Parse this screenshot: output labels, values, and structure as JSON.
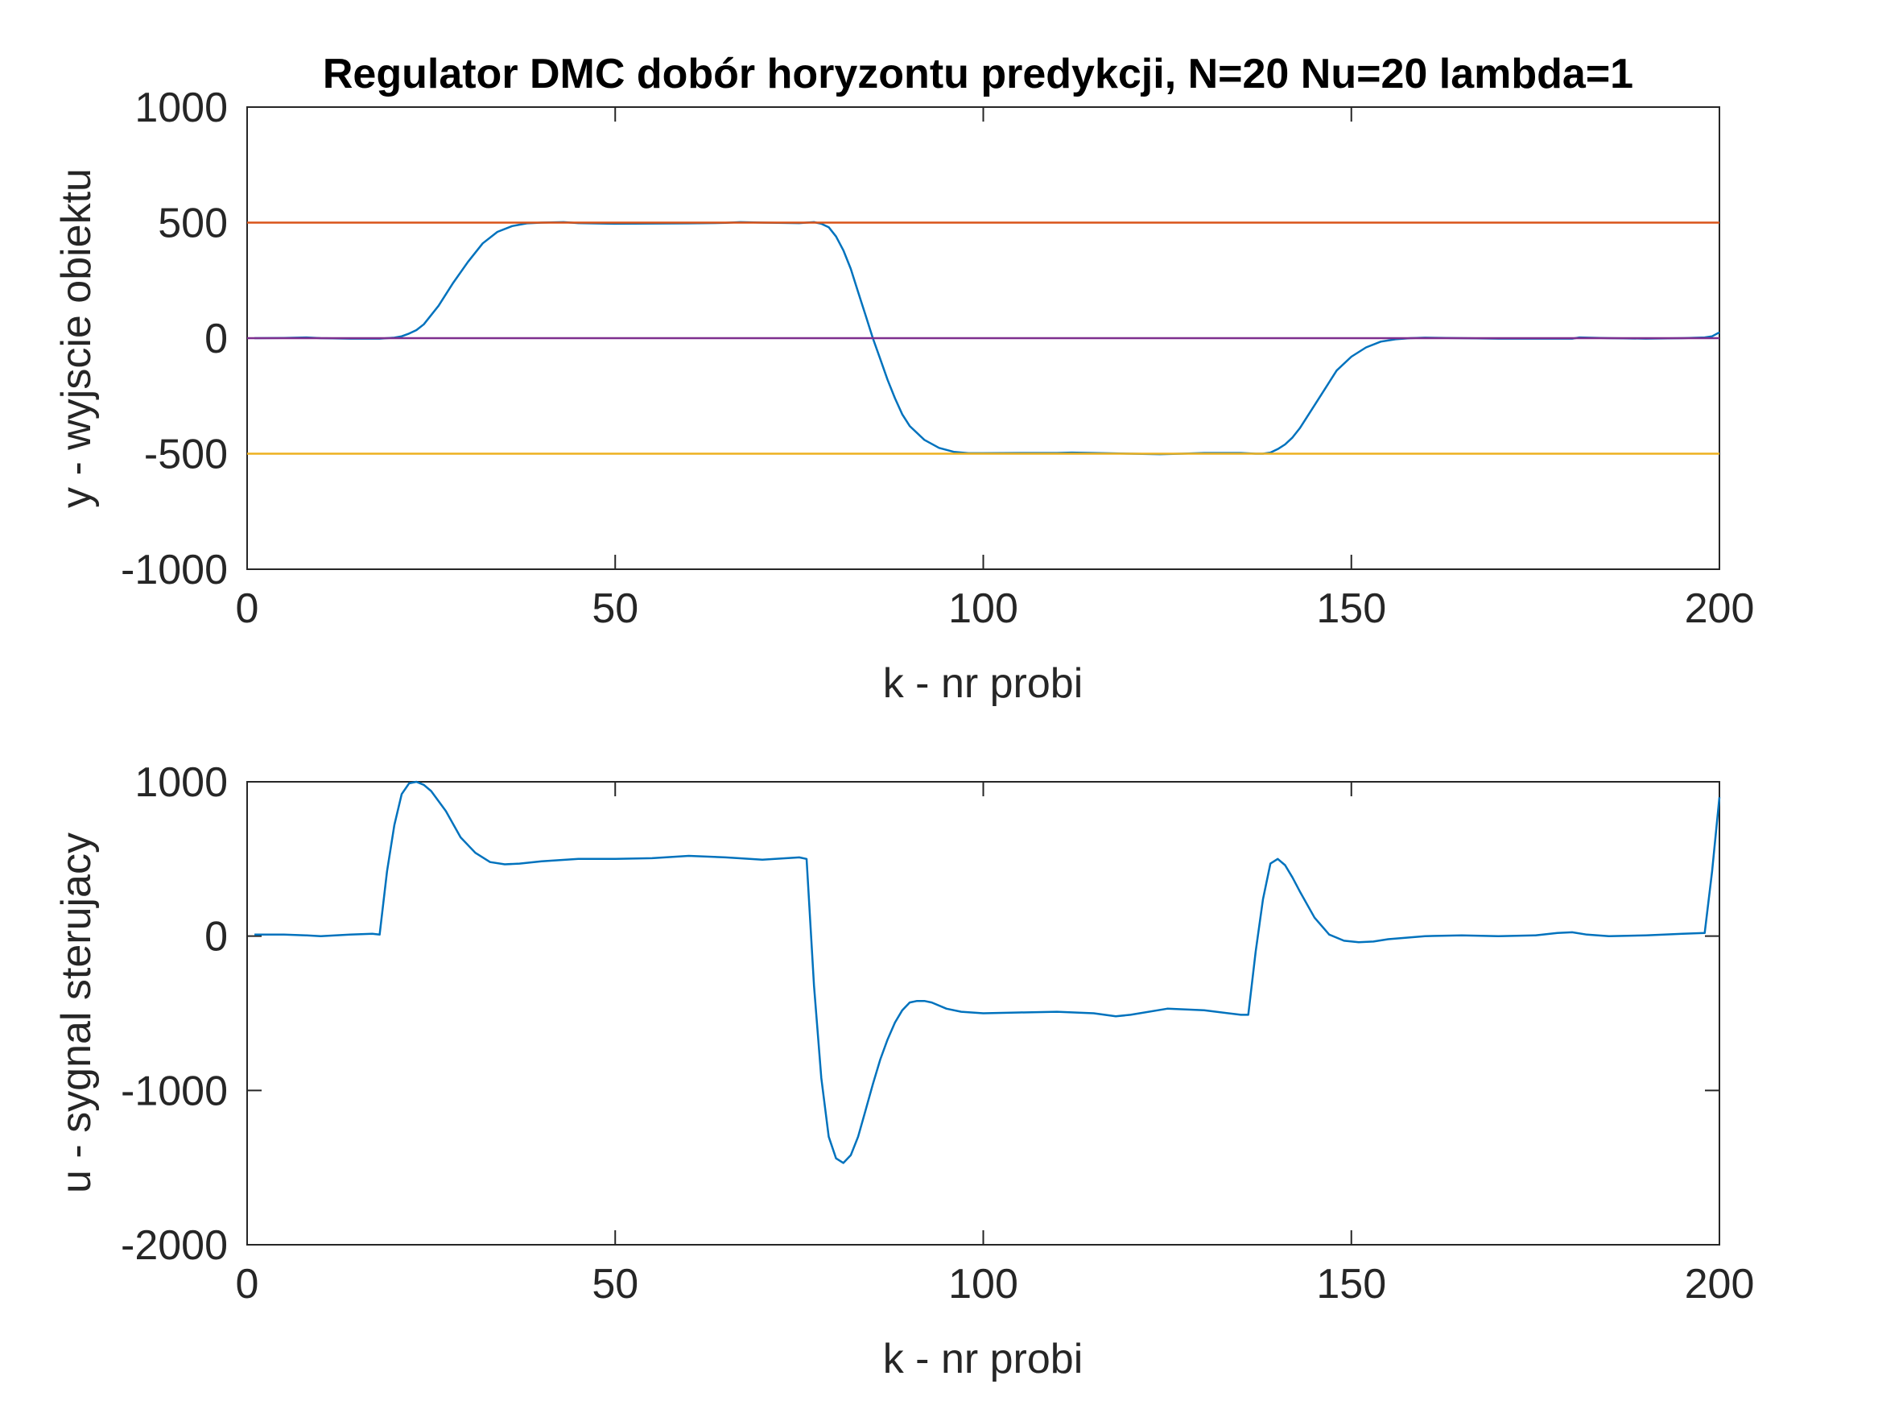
{
  "figure": {
    "title": "Regulator DMC dobór horyzontu predykcji, N=20 Nu=20 lambda=1"
  },
  "colors": {
    "output": "#0072BD",
    "setpoint_high": "#D95319",
    "setpoint_low": "#EDB120",
    "zero_line": "#7E2F8E",
    "axes": "#262626"
  },
  "chart_data": [
    {
      "type": "line",
      "xlabel": "k - nr probi",
      "ylabel": "y - wyjscie obiektu",
      "xlim": [
        0,
        200
      ],
      "ylim": [
        -1000,
        1000
      ],
      "xticks": [
        "0",
        "50",
        "100",
        "150",
        "200"
      ],
      "yticks": [
        "-1000",
        "-500",
        "0",
        "500",
        "1000"
      ],
      "grid": false,
      "series": [
        {
          "role": "output",
          "color": "#0072BD",
          "x": [
            1,
            5,
            8,
            10,
            14,
            18,
            19,
            20,
            21,
            22,
            23,
            24,
            26,
            28,
            30,
            32,
            34,
            36,
            38,
            40,
            43,
            45,
            50,
            55,
            60,
            65,
            67,
            70,
            75,
            77,
            78,
            79,
            80,
            81,
            82,
            83,
            84,
            85,
            86,
            87,
            88,
            89,
            90,
            92,
            94,
            96,
            98,
            100,
            105,
            110,
            112,
            115,
            120,
            124,
            127,
            130,
            135,
            137,
            138,
            139,
            140,
            141,
            142,
            143,
            144,
            146,
            148,
            150,
            152,
            154,
            156,
            158,
            160,
            165,
            170,
            175,
            180,
            181,
            185,
            190,
            195,
            198,
            199,
            200
          ],
          "y": [
            0,
            1,
            3,
            0,
            -2,
            -2,
            0,
            2,
            8,
            20,
            35,
            60,
            140,
            240,
            330,
            410,
            460,
            485,
            497,
            500,
            502,
            498,
            495,
            496,
            497,
            499,
            502,
            500,
            498,
            502,
            495,
            480,
            440,
            380,
            300,
            200,
            100,
            0,
            -90,
            -180,
            -260,
            -330,
            -380,
            -440,
            -475,
            -492,
            -498,
            -498,
            -497,
            -497,
            -495,
            -497,
            -500,
            -502,
            -500,
            -497,
            -497,
            -500,
            -500,
            -495,
            -480,
            -460,
            -430,
            -390,
            -340,
            -240,
            -140,
            -80,
            -40,
            -15,
            -5,
            0,
            2,
            0,
            -2,
            -2,
            -2,
            3,
            0,
            -2,
            0,
            3,
            8,
            25
          ]
        },
        {
          "role": "setpoint_high",
          "color": "#D95319",
          "x": [
            0,
            200
          ],
          "y": [
            500,
            500
          ]
        },
        {
          "role": "setpoint_low",
          "color": "#EDB120",
          "x": [
            0,
            200
          ],
          "y": [
            -500,
            -500
          ]
        },
        {
          "role": "zero_line",
          "color": "#7E2F8E",
          "x": [
            0,
            200
          ],
          "y": [
            0,
            0
          ]
        }
      ]
    },
    {
      "type": "line",
      "xlabel": "k - nr probi",
      "ylabel": "u - sygnal sterujacy",
      "xlim": [
        0,
        200
      ],
      "ylim": [
        -2000,
        1000
      ],
      "xticks": [
        "0",
        "50",
        "100",
        "150",
        "200"
      ],
      "yticks": [
        "-2000",
        "-1000",
        "0",
        "1000"
      ],
      "grid": false,
      "series": [
        {
          "role": "control",
          "color": "#0072BD",
          "x": [
            1,
            5,
            8,
            10,
            14,
            17,
            18,
            19,
            20,
            21,
            22,
            23,
            24,
            25,
            27,
            29,
            31,
            33,
            35,
            37,
            40,
            45,
            50,
            55,
            60,
            65,
            70,
            75,
            76,
            77,
            78,
            79,
            80,
            81,
            82,
            83,
            84,
            85,
            86,
            87,
            88,
            89,
            90,
            91,
            92,
            93,
            95,
            97,
            100,
            105,
            110,
            115,
            118,
            120,
            125,
            130,
            135,
            136,
            137,
            138,
            139,
            140,
            141,
            142,
            143,
            145,
            147,
            149,
            151,
            153,
            155,
            160,
            165,
            170,
            175,
            178,
            180,
            182,
            185,
            190,
            195,
            198,
            199,
            200
          ],
          "y": [
            10,
            10,
            5,
            0,
            10,
            15,
            10,
            420,
            720,
            920,
            990,
            1000,
            980,
            940,
            810,
            640,
            540,
            480,
            465,
            470,
            485,
            500,
            500,
            505,
            520,
            510,
            495,
            510,
            500,
            -320,
            -920,
            -1300,
            -1440,
            -1470,
            -1420,
            -1300,
            -1130,
            -960,
            -800,
            -670,
            -560,
            -480,
            -430,
            -420,
            -420,
            -430,
            -470,
            -490,
            -500,
            -495,
            -490,
            -500,
            -520,
            -510,
            -470,
            -480,
            -510,
            -510,
            -100,
            240,
            470,
            500,
            460,
            380,
            290,
            120,
            10,
            -30,
            -40,
            -35,
            -20,
            0,
            5,
            0,
            5,
            20,
            25,
            10,
            0,
            5,
            15,
            20,
            420,
            900
          ]
        }
      ]
    }
  ]
}
